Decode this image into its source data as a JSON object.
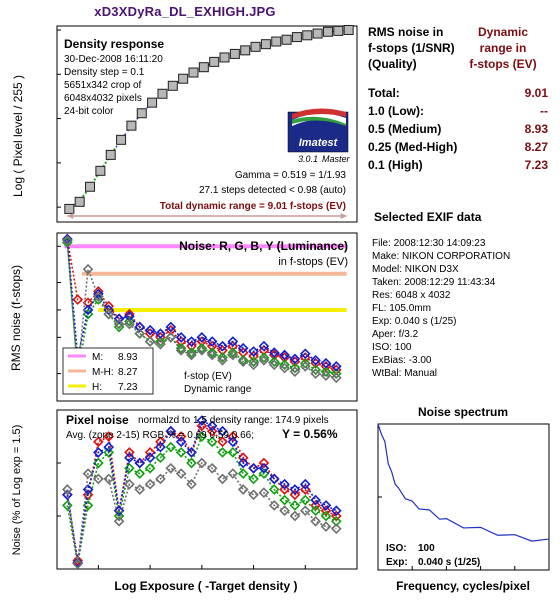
{
  "app_title": "xD3XDyRa_DL_EXHIGH.JPG",
  "summary": {
    "header_left": [
      "RMS noise in",
      "f-stops (1/SNR)",
      "(Quality)"
    ],
    "header_right": [
      "Dynamic",
      "range in",
      "f-stops (EV)"
    ],
    "rows": [
      {
        "label": "Total:",
        "value": "9.01"
      },
      {
        "label": "1.0   (Low):",
        "value": "--"
      },
      {
        "label": "0.5   (Medium)",
        "value": "8.93"
      },
      {
        "label": "0.25 (Med-High)",
        "value": "8.27"
      },
      {
        "label": "0.1   (High)",
        "value": "7.23"
      }
    ]
  },
  "exif": {
    "title": "Selected EXIF data",
    "rows": [
      "File:  2008:12:30 14:09:23",
      "Make:  NIKON CORPORATION",
      "Model: NIKON D3X",
      "Taken: 2008:12:29 11:43:34",
      "Res:   6048 x 4032",
      "FL:  105.0mm",
      "Exp:  0.040 s  (1/25)",
      "Aper:  f/3.2",
      "ISO:  100",
      "ExBias:  -3.00",
      "WtBal:  Manual"
    ]
  },
  "logo": {
    "text": "Imatest",
    "version": "3.0.1",
    "edition": "Master"
  },
  "chart_data": [
    {
      "type": "scatter",
      "panel": "density",
      "title": "Density response",
      "info_lines": [
        "30-Dec-2008 16:11:20",
        "Density step = 0.1",
        "5651x342 crop of",
        "6048x4032 pixels",
        "24-bit color"
      ],
      "ylabel": "Log ( Pixel level / 255 )",
      "xlim": [
        -2.9,
        0
      ],
      "ylim": [
        -2.1,
        0
      ],
      "yticks": [
        "0",
        "-0.5",
        "-1",
        "-1.5",
        "-2"
      ],
      "annotations": [
        "Gamma = 0.519 = 1/1.93",
        "27.1 steps detected < 0.98 (auto)"
      ],
      "dynamic_range_label": "Total dynamic range = 9.01 f-stops (EV)",
      "dynamic_range_x": [
        -2.8,
        -0.1
      ],
      "x": [
        -2.8,
        -2.7,
        -2.6,
        -2.5,
        -2.4,
        -2.3,
        -2.2,
        -2.1,
        -2.0,
        -1.9,
        -1.8,
        -1.7,
        -1.6,
        -1.5,
        -1.4,
        -1.3,
        -1.2,
        -1.1,
        -1.0,
        -0.9,
        -0.8,
        -0.7,
        -0.6,
        -0.5,
        -0.4,
        -0.3,
        -0.2,
        -0.1
      ],
      "y": [
        -2.02,
        -1.94,
        -1.77,
        -1.59,
        -1.41,
        -1.24,
        -1.08,
        -0.94,
        -0.82,
        -0.72,
        -0.63,
        -0.55,
        -0.48,
        -0.42,
        -0.36,
        -0.31,
        -0.27,
        -0.23,
        -0.19,
        -0.16,
        -0.13,
        -0.11,
        -0.08,
        -0.06,
        -0.04,
        -0.02,
        -0.01,
        0.0
      ]
    },
    {
      "type": "line",
      "panel": "rms-noise",
      "title": "Noise: R, G, B, Y (Luminance)",
      "subtitle": "in f-stops (EV)",
      "ylabel": "RMS noise (f-stops)",
      "yscale": "log",
      "ylim": [
        0.01,
        0.7
      ],
      "xlim": [
        -2.9,
        0
      ],
      "yticks": [
        "0.5",
        "0.2",
        "0.1",
        "0.05",
        "0.02",
        "0.01"
      ],
      "ytick_values": [
        0.5,
        0.2,
        0.1,
        0.05,
        0.02,
        0.01
      ],
      "thresholds": [
        {
          "label": "M:",
          "value": "8.93",
          "level": 0.5,
          "color": "#ff88ff",
          "x": [
            -2.83,
            -0.1
          ]
        },
        {
          "label": "M-H:",
          "value": "8.27",
          "level": 0.25,
          "color": "#f4b898",
          "x": [
            -2.66,
            -0.1
          ]
        },
        {
          "label": "H:",
          "value": "7.23",
          "level": 0.1,
          "color": "#f4f000",
          "x": [
            -2.5,
            -0.1
          ]
        }
      ],
      "legend_note": [
        "f-stop (EV)",
        "Dynamic range"
      ],
      "x": [
        -2.8,
        -2.7,
        -2.6,
        -2.5,
        -2.4,
        -2.3,
        -2.2,
        -2.1,
        -2.0,
        -1.9,
        -1.8,
        -1.7,
        -1.6,
        -1.5,
        -1.4,
        -1.3,
        -1.2,
        -1.1,
        -1.0,
        -0.9,
        -0.8,
        -0.7,
        -0.6,
        -0.5,
        -0.4,
        -0.3,
        -0.2
      ],
      "series": [
        {
          "name": "R",
          "color": "#e01010",
          "values": [
            0.6,
            0.13,
            0.12,
            0.16,
            0.11,
            0.08,
            0.09,
            0.065,
            0.055,
            0.05,
            0.06,
            0.045,
            0.04,
            0.045,
            0.04,
            0.036,
            0.04,
            0.034,
            0.031,
            0.036,
            0.032,
            0.03,
            0.027,
            0.03,
            0.026,
            0.024,
            0.022
          ]
        },
        {
          "name": "G",
          "color": "#10a010",
          "values": [
            0.55,
            0.02,
            0.09,
            0.13,
            0.09,
            0.065,
            0.075,
            0.055,
            0.045,
            0.045,
            0.05,
            0.038,
            0.034,
            0.038,
            0.034,
            0.03,
            0.034,
            0.028,
            0.027,
            0.03,
            0.027,
            0.025,
            0.023,
            0.026,
            0.022,
            0.021,
            0.02
          ]
        },
        {
          "name": "B",
          "color": "#1020d0",
          "values": [
            0.6,
            0.03,
            0.1,
            0.15,
            0.1,
            0.08,
            0.085,
            0.065,
            0.06,
            0.055,
            0.065,
            0.05,
            0.045,
            0.05,
            0.045,
            0.04,
            0.045,
            0.038,
            0.035,
            0.04,
            0.034,
            0.032,
            0.029,
            0.033,
            0.028,
            0.026,
            0.024
          ]
        },
        {
          "name": "Y",
          "color": "#707070",
          "values": [
            0.58,
            0.02,
            0.28,
            0.14,
            0.09,
            0.07,
            0.07,
            0.055,
            0.045,
            0.042,
            0.05,
            0.036,
            0.032,
            0.036,
            0.032,
            0.028,
            0.032,
            0.027,
            0.025,
            0.028,
            0.025,
            0.023,
            0.021,
            0.024,
            0.02,
            0.019,
            0.018
          ]
        }
      ]
    },
    {
      "type": "line",
      "panel": "pixel-noise",
      "title": "Pixel noise",
      "header_right": "normalzd to 1.5 density range: 174.9 pixels",
      "avg_line": "Avg. (zone 2-15) RGB % = 0.69  0.59  0.66;",
      "y_total": "Y = 0.56%",
      "xlabel": "Log Exposure ( -Target density )",
      "ylabel": "Noise (% of Log exp = 1.5)",
      "xlim": [
        -2.9,
        0
      ],
      "ylim": [
        0,
        1.5
      ],
      "xticks": [
        "-2.5",
        "-2",
        "-1.5",
        "-1",
        "-0.5",
        "0"
      ],
      "xtick_values": [
        -2.5,
        -2,
        -1.5,
        -1,
        -0.5,
        0
      ],
      "yticks": [
        "1.5",
        "1",
        "0.5",
        "0"
      ],
      "ytick_values": [
        1.5,
        1,
        0.5,
        0
      ],
      "x": [
        -2.8,
        -2.7,
        -2.6,
        -2.5,
        -2.4,
        -2.3,
        -2.2,
        -2.1,
        -2.0,
        -1.9,
        -1.8,
        -1.7,
        -1.6,
        -1.5,
        -1.4,
        -1.3,
        -1.2,
        -1.1,
        -1.0,
        -0.9,
        -0.8,
        -0.7,
        -0.6,
        -0.5,
        -0.4,
        -0.3,
        -0.2
      ],
      "series": [
        {
          "name": "R",
          "color": "#e01010",
          "values": [
            0.7,
            0.08,
            0.7,
            1.2,
            1.25,
            0.55,
            1.1,
            1.0,
            1.1,
            1.2,
            1.3,
            1.25,
            1.1,
            1.35,
            1.3,
            1.2,
            1.25,
            1.05,
            0.95,
            1.0,
            0.85,
            0.75,
            0.7,
            0.75,
            0.6,
            0.55,
            0.5
          ]
        },
        {
          "name": "G",
          "color": "#10a010",
          "values": [
            0.6,
            0.05,
            0.6,
            1.0,
            1.1,
            0.5,
            0.95,
            0.9,
            0.95,
            1.05,
            1.15,
            1.1,
            1.0,
            1.25,
            1.2,
            1.1,
            1.1,
            0.9,
            0.85,
            0.9,
            0.75,
            0.65,
            0.6,
            0.65,
            0.55,
            0.5,
            0.45
          ]
        },
        {
          "name": "B",
          "color": "#1020d0",
          "values": [
            0.7,
            0.06,
            0.75,
            1.1,
            1.15,
            0.55,
            1.05,
            1.0,
            1.05,
            1.15,
            1.3,
            1.2,
            1.1,
            1.4,
            1.35,
            1.3,
            1.2,
            1.0,
            0.95,
            0.95,
            0.85,
            0.8,
            0.75,
            0.8,
            0.65,
            0.6,
            0.55
          ]
        },
        {
          "name": "Y",
          "color": "#707070",
          "values": [
            0.75,
            0.05,
            0.9,
            0.85,
            0.85,
            0.45,
            0.8,
            0.75,
            0.8,
            0.85,
            0.95,
            0.9,
            0.8,
            1.0,
            0.95,
            0.85,
            0.9,
            0.75,
            0.7,
            0.72,
            0.6,
            0.55,
            0.5,
            0.55,
            0.45,
            0.4,
            0.38
          ]
        }
      ]
    },
    {
      "type": "line",
      "panel": "noise-spectrum",
      "title": "Noise spectrum",
      "xlabel": "Frequency, cycles/pixel",
      "xlim": [
        0,
        0.5
      ],
      "ylim": [
        0,
        1
      ],
      "xticks": [
        "0",
        "0.1",
        "0.2",
        "0.3",
        "0.4"
      ],
      "xtick_values": [
        0,
        0.1,
        0.2,
        0.3,
        0.4
      ],
      "yticks": [
        "1",
        "0.5",
        "0"
      ],
      "ytick_values": [
        1,
        0.5,
        0
      ],
      "iso_label": "ISO:",
      "iso_value": "100",
      "exp_label": "Exp:",
      "exp_value": "0.040 s  (1/25)",
      "color": "#2030c0",
      "x": [
        0.0,
        0.01,
        0.02,
        0.03,
        0.04,
        0.05,
        0.06,
        0.08,
        0.1,
        0.12,
        0.15,
        0.18,
        0.2,
        0.25,
        0.3,
        0.35,
        0.4,
        0.45,
        0.5
      ],
      "y": [
        1.0,
        0.93,
        0.88,
        0.74,
        0.66,
        0.6,
        0.55,
        0.5,
        0.46,
        0.43,
        0.4,
        0.36,
        0.34,
        0.3,
        0.28,
        0.25,
        0.23,
        0.21,
        0.2
      ]
    }
  ]
}
